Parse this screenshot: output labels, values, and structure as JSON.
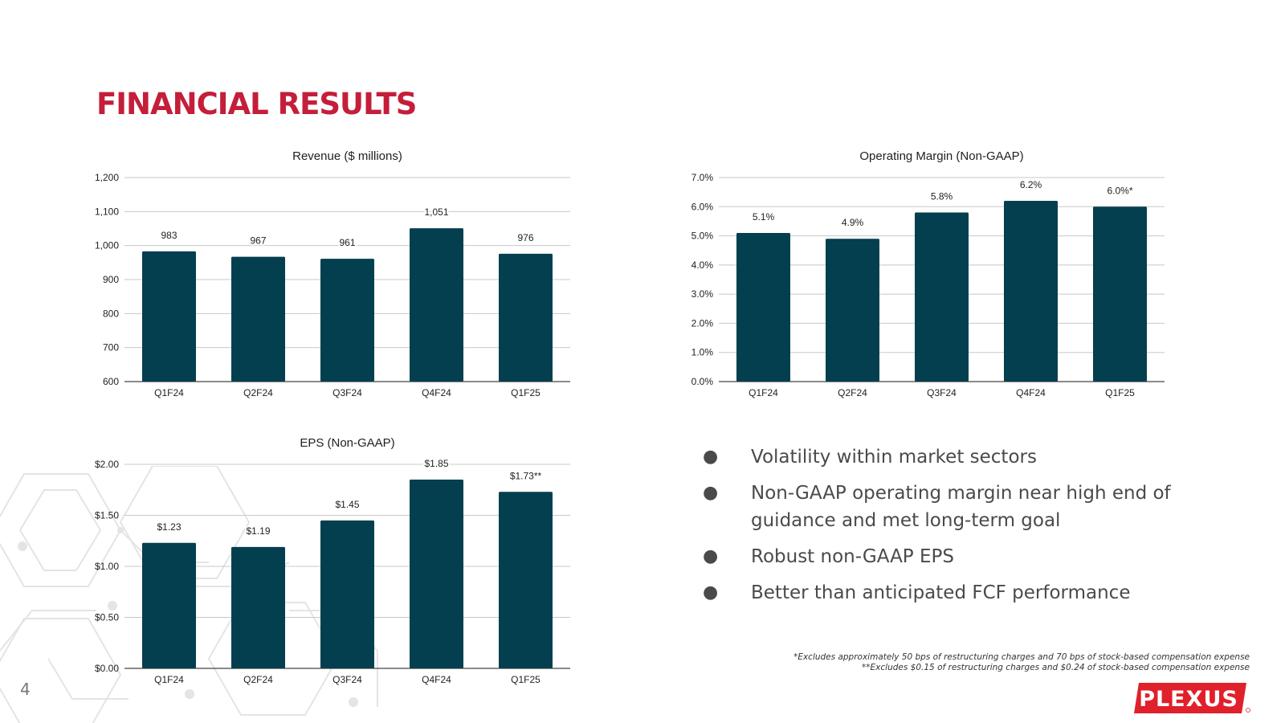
{
  "page": {
    "title": "FINANCIAL RESULTS",
    "page_number": "4",
    "bar_color": "#033f4e",
    "accent_color": "#c41e3a",
    "logo": "PLEXUS"
  },
  "chart_data": [
    {
      "id": "revenue",
      "type": "bar",
      "title": "Revenue ($ millions)",
      "categories": [
        "Q1F24",
        "Q2F24",
        "Q3F24",
        "Q4F24",
        "Q1F25"
      ],
      "values": [
        983,
        967,
        961,
        1051,
        976
      ],
      "data_labels": [
        "983",
        "967",
        "961",
        "1,051",
        "976"
      ],
      "ylim": [
        600,
        1200
      ],
      "yticks": [
        600,
        700,
        800,
        900,
        1000,
        1100,
        1200
      ],
      "ytick_labels": [
        "600",
        "700",
        "800",
        "900",
        "1,000",
        "1,100",
        "1,200"
      ],
      "grid": true,
      "legend": "none"
    },
    {
      "id": "operating-margin",
      "type": "bar",
      "title": "Operating Margin (Non-GAAP)",
      "categories": [
        "Q1F24",
        "Q2F24",
        "Q3F24",
        "Q4F24",
        "Q1F25"
      ],
      "values": [
        5.1,
        4.9,
        5.8,
        6.2,
        6.0
      ],
      "data_labels": [
        "5.1%",
        "4.9%",
        "5.8%",
        "6.2%",
        "6.0%*"
      ],
      "ylim": [
        0,
        7
      ],
      "yticks": [
        0,
        1,
        2,
        3,
        4,
        5,
        6,
        7
      ],
      "ytick_labels": [
        "0.0%",
        "1.0%",
        "2.0%",
        "3.0%",
        "4.0%",
        "5.0%",
        "6.0%",
        "7.0%"
      ],
      "grid": true,
      "legend": "none"
    },
    {
      "id": "eps",
      "type": "bar",
      "title": "EPS (Non-GAAP)",
      "categories": [
        "Q1F24",
        "Q2F24",
        "Q3F24",
        "Q4F24",
        "Q1F25"
      ],
      "values": [
        1.23,
        1.19,
        1.45,
        1.85,
        1.73
      ],
      "data_labels": [
        "$1.23",
        "$1.19",
        "$1.45",
        "$1.85",
        "$1.73**"
      ],
      "ylim": [
        0,
        2
      ],
      "yticks": [
        0,
        0.5,
        1,
        1.5,
        2
      ],
      "ytick_labels": [
        "$0.00",
        "$0.50",
        "$1.00",
        "$1.50",
        "$2.00"
      ],
      "grid": true,
      "legend": "none"
    }
  ],
  "bullets": [
    "Volatility within market sectors",
    "Non-GAAP operating margin near high end of guidance and met long-term goal",
    "Robust non-GAAP EPS",
    "Better than anticipated FCF performance"
  ],
  "bullet_marker": "●",
  "footnotes": [
    "*Excludes approximately 50 bps of restructuring charges and 70 bps of stock-based compensation expense",
    "**Excludes $0.15 of restructuring charges and $0.24 of stock-based compensation expense"
  ]
}
